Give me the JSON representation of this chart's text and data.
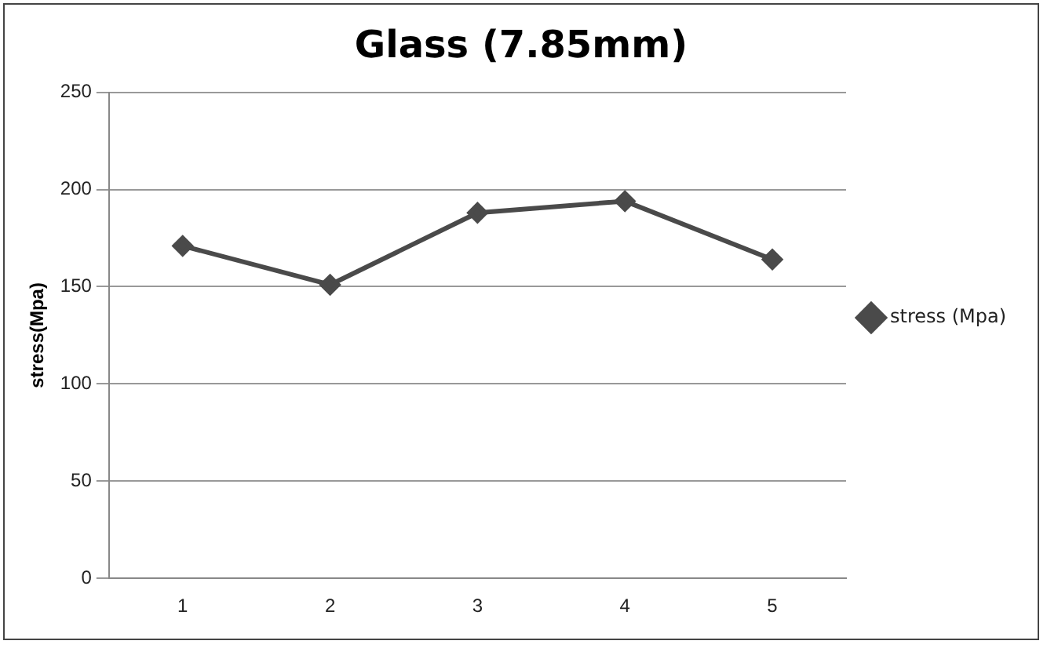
{
  "chart_data": {
    "type": "line",
    "title": "Glass (7.85mm)",
    "ylabel": "stress(Mpa)",
    "categories": [
      "1",
      "2",
      "3",
      "4",
      "5"
    ],
    "series": [
      {
        "name": "stress (Mpa)",
        "color": "#4a4a4a",
        "values": [
          171,
          151,
          188,
          194,
          164
        ]
      }
    ],
    "ylim": [
      0,
      250
    ],
    "yticks": [
      0,
      50,
      100,
      150,
      200,
      250
    ],
    "grid": "y",
    "legend": "right",
    "marker": "diamond",
    "line_style": "solid"
  }
}
